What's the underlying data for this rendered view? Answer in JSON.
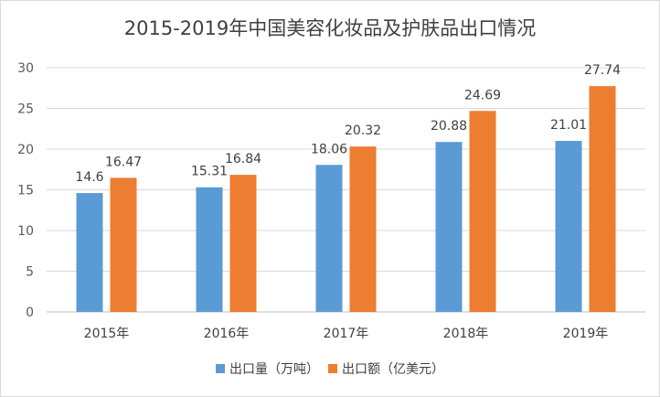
{
  "chart_data": {
    "type": "bar",
    "title": "2015-2019年中国美容化妆品及护肤品出口情况",
    "categories": [
      "2015年",
      "2016年",
      "2017年",
      "2018年",
      "2019年"
    ],
    "series": [
      {
        "name": "出口量（万吨）",
        "color": "#5b9bd5",
        "values": [
          14.6,
          15.31,
          18.06,
          20.88,
          21.01
        ]
      },
      {
        "name": "出口额（亿美元）",
        "color": "#ed7d31",
        "values": [
          16.47,
          16.84,
          20.32,
          24.69,
          27.74
        ]
      }
    ],
    "ylim": [
      0,
      30
    ],
    "yticks": [
      0,
      5,
      10,
      15,
      20,
      25,
      30
    ],
    "grid": true,
    "legend": "bottom"
  }
}
